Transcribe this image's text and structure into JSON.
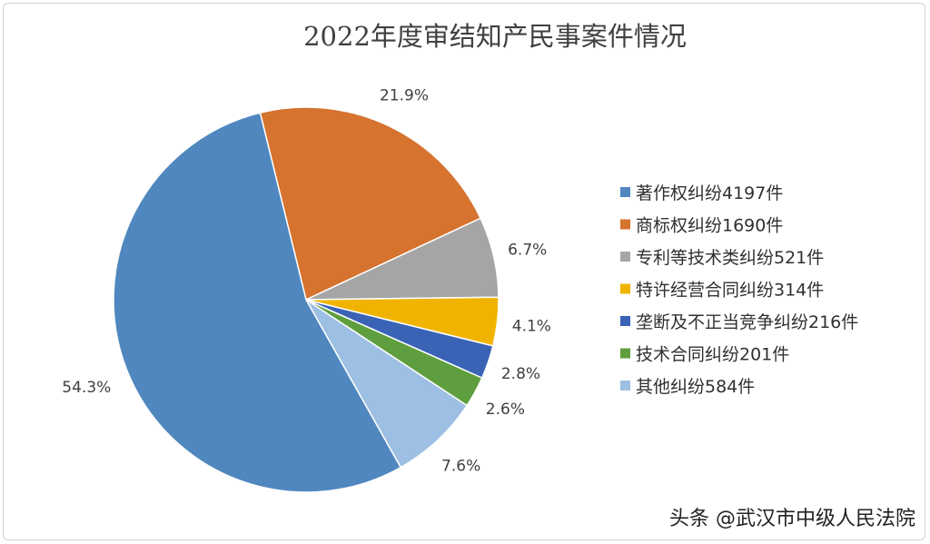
{
  "chart_data": {
    "type": "pie",
    "title": "2022年度审结知产民事案件情况",
    "legend_position": "right",
    "slices": [
      {
        "name": "商标权纠纷1690件",
        "value": 1690,
        "percent_label": "21.9%",
        "color": "#D5732F"
      },
      {
        "name": "专利等技术类纠纷521件",
        "value": 521,
        "percent_label": "6.7%",
        "color": "#A5A5A5"
      },
      {
        "name": "特许经营合同纠纷314件",
        "value": 314,
        "percent_label": "4.1%",
        "color": "#F0B400"
      },
      {
        "name": "垄断及不正当竞争纠纷216件",
        "value": 216,
        "percent_label": "2.8%",
        "color": "#3A63B5"
      },
      {
        "name": "技术合同纠纷201件",
        "value": 201,
        "percent_label": "2.6%",
        "color": "#5E9E3E"
      },
      {
        "name": "其他纠纷584件",
        "value": 584,
        "percent_label": "7.6%",
        "color": "#9DBFE3"
      },
      {
        "name": "著作权纠纷4197件",
        "value": 4197,
        "percent_label": "54.3%",
        "color": "#4F87BE"
      }
    ],
    "legend_order": [
      "著作权纠纷4197件",
      "商标权纠纷1690件",
      "专利等技术类纠纷521件",
      "特许经营合同纠纷314件",
      "垄断及不正当竞争纠纷216件",
      "技术合同纠纷201件",
      "其他纠纷584件"
    ]
  },
  "watermark": "头条 @武汉市中级人民法院"
}
